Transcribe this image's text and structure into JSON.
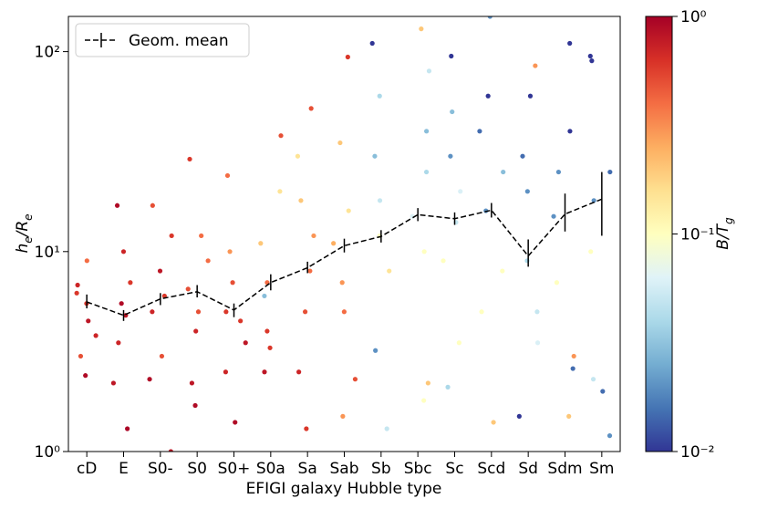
{
  "chart_data": {
    "type": "scatter",
    "x_label": "EFIGI galaxy Hubble type",
    "y_label": [
      "h",
      "e",
      "/R",
      "e"
    ],
    "categories": [
      "cD",
      "E",
      "S0-",
      "S0",
      "S0+",
      "S0a",
      "Sa",
      "Sab",
      "Sb",
      "Sbc",
      "Sc",
      "Scd",
      "Sd",
      "Sdm",
      "Sm"
    ],
    "log_y": true,
    "ylim": [
      1,
      150
    ],
    "yticks": [
      {
        "value": 1,
        "label": "10⁰"
      },
      {
        "value": 10,
        "label": "10¹"
      },
      {
        "value": 100,
        "label": "10²"
      }
    ],
    "points": [
      {
        "values": [
          5.5,
          4.5,
          6.8,
          3.0,
          2.4,
          9.0,
          6.2,
          3.8
        ],
        "bt": [
          0.6,
          0.8,
          0.7,
          0.5,
          0.9,
          0.4,
          0.6,
          0.7
        ]
      },
      {
        "values": [
          4.8,
          5.5,
          3.5,
          7.0,
          1.3,
          2.2,
          10,
          17
        ],
        "bt": [
          0.8,
          0.9,
          0.7,
          0.6,
          0.95,
          0.8,
          0.7,
          0.9
        ]
      },
      {
        "values": [
          6,
          5,
          3,
          8,
          17,
          2.3,
          1.0,
          12
        ],
        "bt": [
          0.6,
          0.7,
          0.5,
          0.8,
          0.5,
          0.9,
          0.8,
          0.6
        ]
      },
      {
        "values": [
          6.5,
          4,
          9,
          29,
          1.7,
          5,
          12,
          2.2
        ],
        "bt": [
          0.5,
          0.7,
          0.4,
          0.6,
          0.9,
          0.5,
          0.4,
          0.8
        ]
      },
      {
        "values": [
          5,
          3.5,
          7,
          24,
          1.4,
          10,
          2.5,
          4.5
        ],
        "bt": [
          0.6,
          0.8,
          0.5,
          0.4,
          0.9,
          0.3,
          0.7,
          0.6
        ]
      },
      {
        "values": [
          7,
          4,
          11,
          38,
          2.5,
          20,
          3.3,
          6
        ],
        "bt": [
          0.4,
          0.6,
          0.2,
          0.5,
          0.8,
          0.15,
          0.6,
          0.03
        ]
      },
      {
        "values": [
          8,
          5,
          12,
          52,
          2.5,
          18,
          1.3,
          30
        ],
        "bt": [
          0.4,
          0.5,
          0.3,
          0.5,
          0.7,
          0.2,
          0.6,
          0.15
        ]
      },
      {
        "values": [
          11,
          7,
          16,
          94,
          2.3,
          35,
          1.5,
          5
        ],
        "bt": [
          0.25,
          0.3,
          0.15,
          0.6,
          0.5,
          0.2,
          0.3,
          0.4
        ]
      },
      {
        "values": [
          12,
          8,
          18,
          60,
          3.2,
          30,
          1.3,
          110
        ],
        "bt": [
          0.1,
          0.15,
          0.05,
          0.04,
          0.02,
          0.03,
          0.05,
          0.01
        ]
      },
      {
        "values": [
          15,
          10,
          25,
          80,
          2.2,
          40,
          1.8,
          130
        ],
        "bt": [
          0.06,
          0.1,
          0.04,
          0.05,
          0.2,
          0.03,
          0.1,
          0.2
        ]
      },
      {
        "values": [
          14,
          9,
          30,
          95,
          2.1,
          50,
          3.5,
          20
        ],
        "bt": [
          0.05,
          0.1,
          0.02,
          0.01,
          0.04,
          0.03,
          0.1,
          0.06
        ]
      },
      {
        "values": [
          16,
          8,
          40,
          60,
          1.4,
          150,
          5,
          25
        ],
        "bt": [
          0.02,
          0.1,
          0.015,
          0.01,
          0.2,
          0.02,
          0.1,
          0.03
        ]
      },
      {
        "values": [
          9,
          5,
          60,
          20,
          1.5,
          85,
          3.5,
          30
        ],
        "bt": [
          0.04,
          0.05,
          0.01,
          0.02,
          0.01,
          0.3,
          0.06,
          0.015
        ]
      },
      {
        "values": [
          15,
          7,
          40,
          110,
          1.5,
          3,
          25,
          2.6
        ],
        "bt": [
          0.02,
          0.1,
          0.01,
          0.01,
          0.2,
          0.3,
          0.02,
          0.015
        ]
      },
      {
        "values": [
          18,
          10,
          90,
          95,
          2,
          1.2,
          25,
          2.3
        ],
        "bt": [
          0.02,
          0.1,
          0.01,
          0.01,
          0.015,
          0.02,
          0.015,
          0.05
        ]
      }
    ],
    "mean": {
      "name": "Geom. mean",
      "color": "#000000",
      "values": [
        5.6,
        4.8,
        5.8,
        6.3,
        5.1,
        7.0,
        8.3,
        10.7,
        11.9,
        15.3,
        14.6,
        16.1,
        9.5,
        15.4,
        18.3
      ],
      "lower": [
        5.2,
        4.5,
        5.4,
        5.9,
        4.7,
        6.4,
        7.8,
        9.9,
        11.1,
        14.2,
        13.6,
        14.8,
        8.4,
        12.6,
        12.0
      ],
      "upper": [
        6.1,
        5.1,
        6.2,
        6.8,
        5.5,
        7.7,
        8.9,
        11.6,
        12.8,
        16.5,
        15.7,
        17.5,
        11.5,
        19.5,
        25.0
      ]
    },
    "legend": "upper left",
    "colorbar": {
      "label": [
        "B/T",
        "g"
      ],
      "log": true,
      "clim": [
        0.01,
        1
      ],
      "ticks": [
        {
          "value": 0.01,
          "label": "10⁻²"
        },
        {
          "value": 0.1,
          "label": "10⁻¹"
        },
        {
          "value": 1,
          "label": "10⁰"
        }
      ],
      "colormap": [
        "#313695",
        "#4575b4",
        "#74add1",
        "#abd9e9",
        "#e0f3f8",
        "#ffffbf",
        "#fee090",
        "#fdae61",
        "#f46d43",
        "#d73027",
        "#a50026"
      ]
    }
  }
}
